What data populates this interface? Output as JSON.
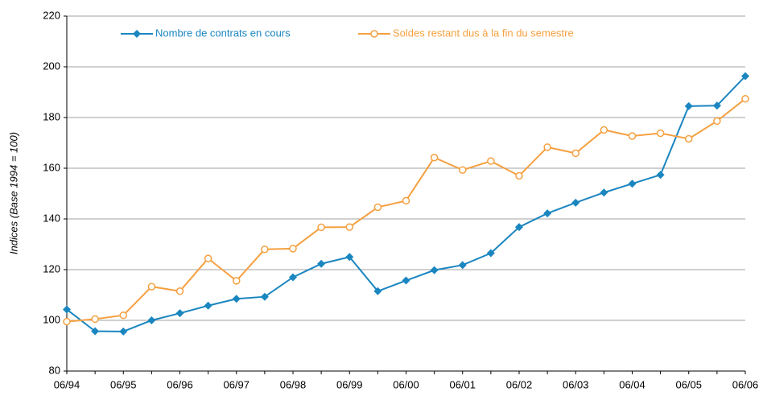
{
  "chart_data": {
    "type": "line",
    "y_label": "Indices (Base 1994 = 100)",
    "categories": [
      "06/94",
      null,
      "06/95",
      null,
      "06/96",
      null,
      "06/97",
      null,
      "06/98",
      null,
      "06/99",
      null,
      "06/00",
      null,
      "06/01",
      null,
      "06/02",
      null,
      "06/03",
      null,
      "06/04",
      null,
      "06/05",
      null,
      "06/06"
    ],
    "series": [
      {
        "name": "Nombre de contrats en cours",
        "color": "#1a86c0",
        "marker": "diamond",
        "values": [
          104.3,
          95.7,
          95.6,
          100,
          102.8,
          105.8,
          108.5,
          109.3,
          117,
          122.3,
          125,
          111.5,
          115.7,
          119.8,
          121.8,
          126.5,
          136.8,
          142.2,
          146.4,
          150.4,
          153.9,
          157.4,
          184.5,
          184.7,
          196.3
        ]
      },
      {
        "name": "Soldes restant dus à la fin du semestre",
        "color": "#f5a040",
        "marker": "circle",
        "values": [
          99.5,
          100.5,
          102,
          113.3,
          111.5,
          124.4,
          115.6,
          128,
          128.3,
          136.7,
          136.8,
          144.6,
          147.2,
          164.2,
          159.3,
          162.8,
          157,
          168.3,
          165.9,
          175.1,
          172.7,
          173.8,
          171.6,
          178.6,
          187.4
        ]
      }
    ],
    "ylim": [
      80,
      220
    ],
    "yticks": [
      80,
      100,
      120,
      140,
      160,
      180,
      200,
      220
    ],
    "grid": true,
    "legend": "top"
  }
}
